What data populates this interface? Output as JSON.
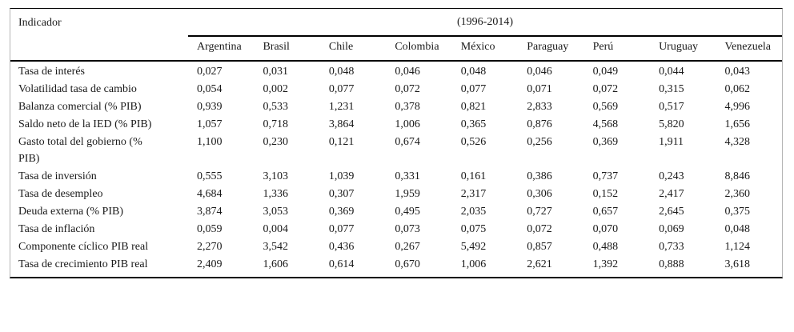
{
  "table": {
    "corner_header": "Indicador",
    "group_header": "(1996-2014)",
    "columns": [
      "Argentina",
      "Brasil",
      "Chile",
      "Colombia",
      "México",
      "Paraguay",
      "Perú",
      "Uruguay",
      "Venezuela"
    ],
    "rows": [
      {
        "indicator": "Tasa de interés",
        "values": [
          "0,027",
          "0,031",
          "0,048",
          "0,046",
          "0,048",
          "0,046",
          "0,049",
          "0,044",
          "0,043"
        ]
      },
      {
        "indicator": "Volatilidad tasa de cambio",
        "values": [
          "0,054",
          "0,002",
          "0,077",
          "0,072",
          "0,077",
          "0,071",
          "0,072",
          "0,315",
          "0,062"
        ]
      },
      {
        "indicator": "Balanza comercial (% PIB)",
        "values": [
          "0,939",
          "0,533",
          "1,231",
          "0,378",
          "0,821",
          "2,833",
          "0,569",
          "0,517",
          "4,996"
        ]
      },
      {
        "indicator": "Saldo neto de la IED (% PIB)",
        "values": [
          "1,057",
          "0,718",
          "3,864",
          "1,006",
          "0,365",
          "0,876",
          "4,568",
          "5,820",
          "1,656"
        ]
      },
      {
        "indicator": "Gasto total del gobierno (% PIB)",
        "values": [
          "1,100",
          "0,230",
          "0,121",
          "0,674",
          "0,526",
          "0,256",
          "0,369",
          "1,911",
          "4,328"
        ]
      },
      {
        "indicator": "Tasa de inversión",
        "values": [
          "0,555",
          "3,103",
          "1,039",
          "0,331",
          "0,161",
          "0,386",
          "0,737",
          "0,243",
          "8,846"
        ]
      },
      {
        "indicator": "Tasa de desempleo",
        "values": [
          "4,684",
          "1,336",
          "0,307",
          "1,959",
          "2,317",
          "0,306",
          "0,152",
          "2,417",
          "2,360"
        ]
      },
      {
        "indicator": "Deuda externa (% PIB)",
        "values": [
          "3,874",
          "3,053",
          "0,369",
          "0,495",
          "2,035",
          "0,727",
          "0,657",
          "2,645",
          "0,375"
        ]
      },
      {
        "indicator": "Tasa de inflación",
        "values": [
          "0,059",
          "0,004",
          "0,077",
          "0,073",
          "0,075",
          "0,072",
          "0,070",
          "0,069",
          "0,048"
        ]
      },
      {
        "indicator": "Componente cíclico PIB real",
        "values": [
          "2,270",
          "3,542",
          "0,436",
          "0,267",
          "5,492",
          "0,857",
          "0,488",
          "0,733",
          "1,124"
        ]
      },
      {
        "indicator": "Tasa de crecimiento PIB real",
        "values": [
          "2,409",
          "1,606",
          "0,614",
          "0,670",
          "1,006",
          "2,621",
          "1,392",
          "0,888",
          "3,618"
        ]
      }
    ],
    "colors": {
      "background": "#ffffff",
      "text": "#1a1a1a",
      "rule": "#000000",
      "frame": "#b5b5b5"
    }
  }
}
